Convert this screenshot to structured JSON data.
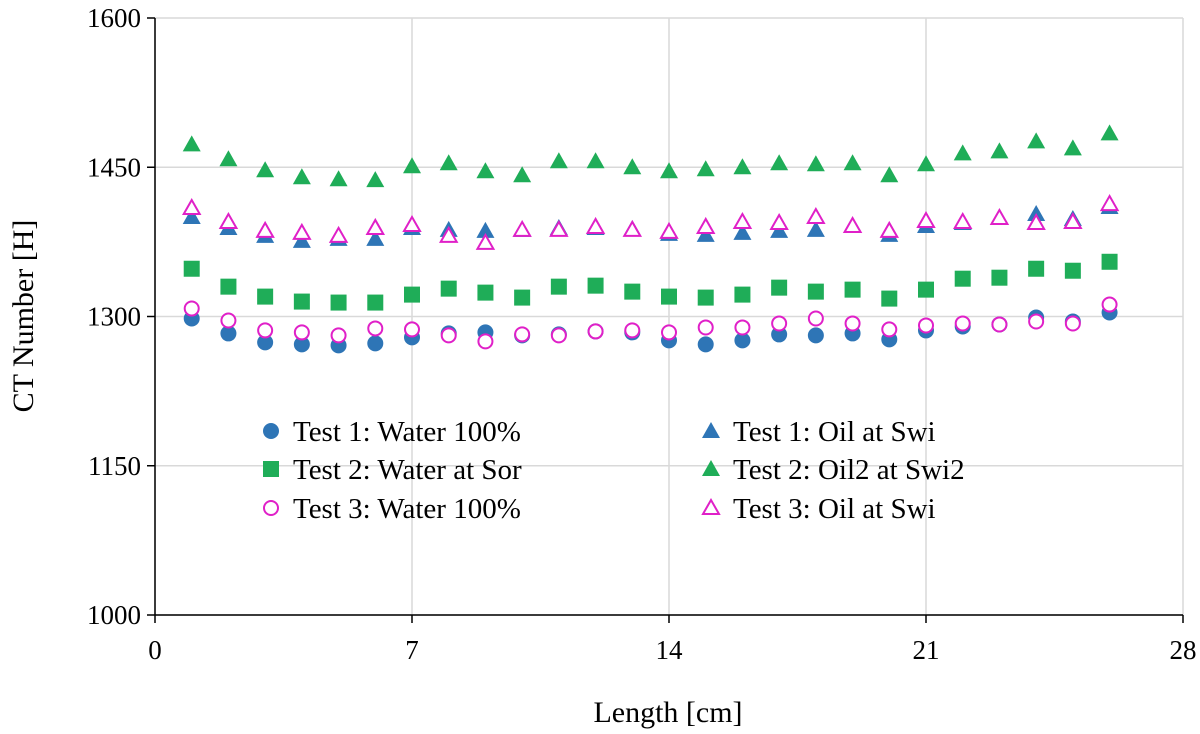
{
  "chart_data": {
    "type": "scatter",
    "title": "",
    "xlabel": "Length [cm]",
    "ylabel": "CT Number [H]",
    "xlim": [
      0,
      28
    ],
    "ylim": [
      1000,
      1600
    ],
    "xticks": [
      "0",
      "7",
      "14",
      "21",
      "28"
    ],
    "yticks": [
      "1000",
      "1150",
      "1300",
      "1450",
      "1600"
    ],
    "grid": true,
    "legend_position": "lower-center, inside plot",
    "x": [
      1,
      2,
      3,
      4,
      5,
      6,
      7,
      8,
      9,
      10,
      11,
      12,
      13,
      14,
      15,
      16,
      17,
      18,
      19,
      20,
      21,
      22,
      23,
      24,
      25,
      26
    ],
    "series": [
      {
        "name": "Test 1: Water 100%",
        "marker": "circle-filled",
        "color": "#2E75B6",
        "values": [
          1298,
          1283,
          1274,
          1272,
          1271,
          1273,
          1279,
          1283,
          1284,
          1281,
          1282,
          1285,
          1284,
          1276,
          1272,
          1276,
          1282,
          1281,
          1283,
          1277,
          1286,
          1290,
          1292,
          1299,
          1295,
          1304
        ]
      },
      {
        "name": "Test 2: Water at Sor",
        "marker": "square-filled",
        "color": "#1FAD58",
        "values": [
          1348,
          1330,
          1320,
          1315,
          1314,
          1314,
          1322,
          1328,
          1324,
          1319,
          1330,
          1331,
          1325,
          1320,
          1319,
          1322,
          1329,
          1325,
          1327,
          1318,
          1327,
          1338,
          1339,
          1348,
          1346,
          1355
        ]
      },
      {
        "name": "Test 3: Water 100%",
        "marker": "circle-open",
        "color": "#E020C8",
        "values": [
          1308,
          1296,
          1286,
          1284,
          1281,
          1288,
          1287,
          1281,
          1275,
          1282,
          1281,
          1285,
          1286,
          1284,
          1289,
          1289,
          1293,
          1298,
          1293,
          1287,
          1291,
          1293,
          1292,
          1295,
          1293,
          1312
        ]
      },
      {
        "name": "Test 1: Oil at Swi",
        "marker": "triangle-filled",
        "color": "#2E75B6",
        "values": [
          1400,
          1389,
          1381,
          1376,
          1378,
          1378,
          1389,
          1387,
          1386,
          1387,
          1389,
          1389,
          1388,
          1383,
          1382,
          1384,
          1386,
          1387,
          1391,
          1382,
          1391,
          1394,
          1399,
          1403,
          1398,
          1410
        ]
      },
      {
        "name": "Test 2: Oil2 at Swi2",
        "marker": "triangle-filled",
        "color": "#1FAD58",
        "values": [
          1473,
          1458,
          1447,
          1440,
          1438,
          1437,
          1451,
          1454,
          1446,
          1442,
          1456,
          1456,
          1450,
          1446,
          1448,
          1450,
          1454,
          1453,
          1454,
          1442,
          1453,
          1464,
          1466,
          1476,
          1469,
          1484
        ]
      },
      {
        "name": "Test 3: Oil at Swi",
        "marker": "triangle-open",
        "color": "#E020C8",
        "values": [
          1409,
          1395,
          1386,
          1384,
          1381,
          1389,
          1392,
          1381,
          1374,
          1387,
          1387,
          1390,
          1387,
          1385,
          1390,
          1395,
          1394,
          1400,
          1391,
          1386,
          1396,
          1395,
          1399,
          1394,
          1395,
          1413
        ]
      }
    ]
  }
}
